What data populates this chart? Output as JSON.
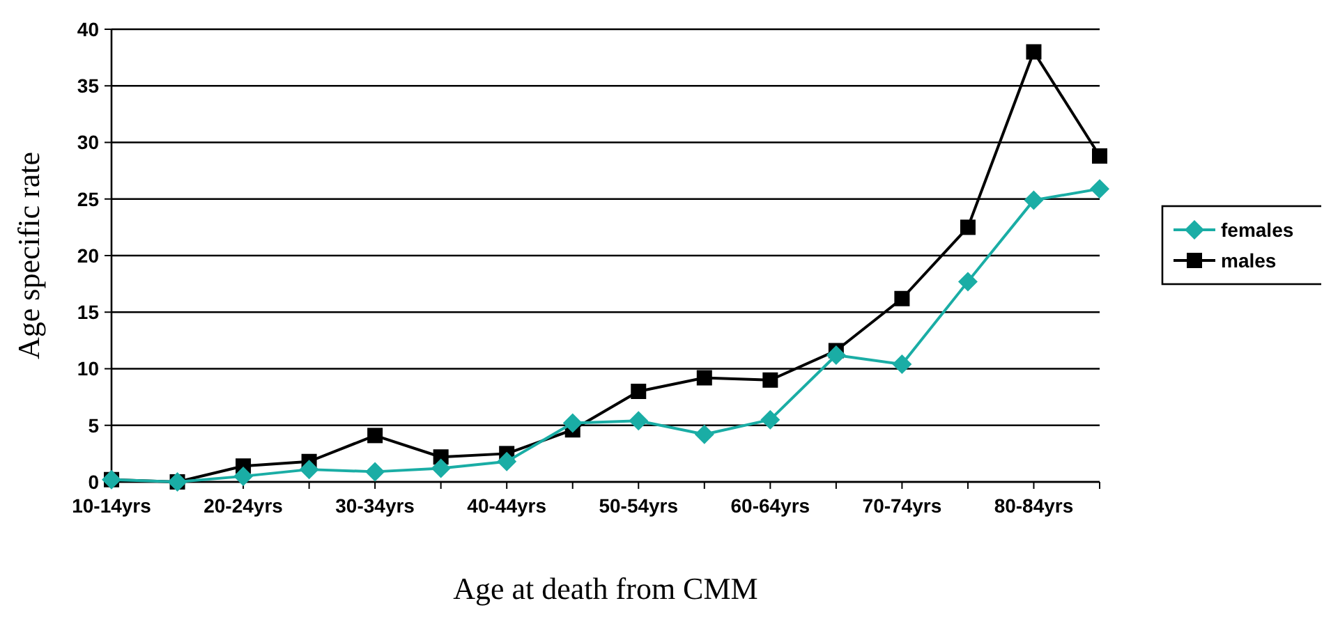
{
  "chart_data": {
    "type": "line",
    "xlabel": "Age at death from CMM",
    "ylabel": "Age specific rate",
    "categories": [
      "10-14yrs",
      null,
      "20-24yrs",
      null,
      "30-34yrs",
      null,
      "40-44yrs",
      null,
      "50-54yrs",
      null,
      "60-64yrs",
      null,
      "70-74yrs",
      null,
      "80-84yrs",
      null
    ],
    "series": [
      {
        "name": "females",
        "color": "#1aada5",
        "marker": "diamond",
        "values": [
          0.2,
          0,
          0.5,
          1.1,
          0.9,
          1.2,
          1.8,
          5.2,
          5.4,
          4.2,
          5.5,
          11.2,
          10.4,
          17.7,
          24.9,
          25.9
        ]
      },
      {
        "name": "males",
        "color": "#000000",
        "marker": "square",
        "values": [
          0.2,
          0,
          1.4,
          1.8,
          4.1,
          2.2,
          2.5,
          4.6,
          8.0,
          9.2,
          9.0,
          11.6,
          16.2,
          22.5,
          38.0,
          28.8
        ]
      }
    ],
    "ylim": [
      0,
      40
    ],
    "yticks": [
      0,
      5,
      10,
      15,
      20,
      25,
      30,
      35,
      40
    ],
    "grid": "y",
    "legend": "right"
  }
}
